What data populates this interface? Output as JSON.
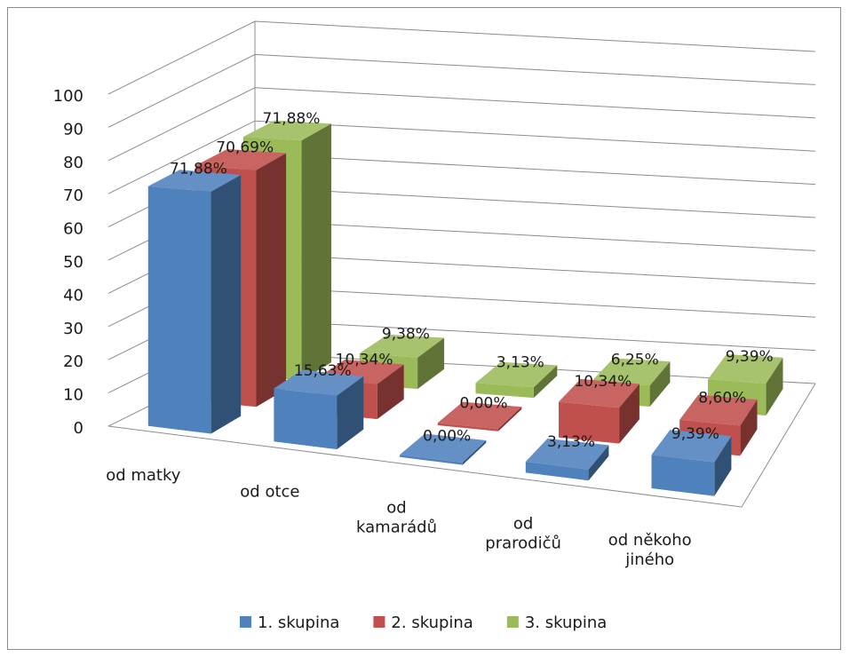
{
  "chart_data": {
    "type": "bar",
    "title": "",
    "xlabel": "",
    "ylabel": "",
    "ylim": [
      0,
      100
    ],
    "ytick_step": 10,
    "grid": true,
    "legend_position": "bottom",
    "categories": [
      [
        "od matky"
      ],
      [
        "od otce"
      ],
      [
        "od",
        "kamarádů"
      ],
      [
        "od",
        "prarodičů"
      ],
      [
        "od někoho",
        "jiného"
      ]
    ],
    "series": [
      {
        "name": "1. skupina",
        "color": "#4f81bd",
        "values": [
          71.88,
          15.63,
          0.0,
          3.13,
          9.39
        ],
        "labels": [
          "71,88%",
          "15,63%",
          "0,00%",
          "3,13%",
          "9,39%"
        ]
      },
      {
        "name": "2. skupina",
        "color": "#c0504d",
        "values": [
          70.69,
          10.34,
          0.0,
          10.34,
          8.6
        ],
        "labels": [
          "70,69%",
          "10,34%",
          "0,00%",
          "10,34%",
          "8,60%"
        ]
      },
      {
        "name": "3. skupina",
        "color": "#9bbb59",
        "values": [
          71.88,
          9.38,
          3.13,
          6.25,
          9.39
        ],
        "labels": [
          "71,88%",
          "9,38%",
          "3,13%",
          "6,25%",
          "9,39%"
        ]
      }
    ]
  }
}
